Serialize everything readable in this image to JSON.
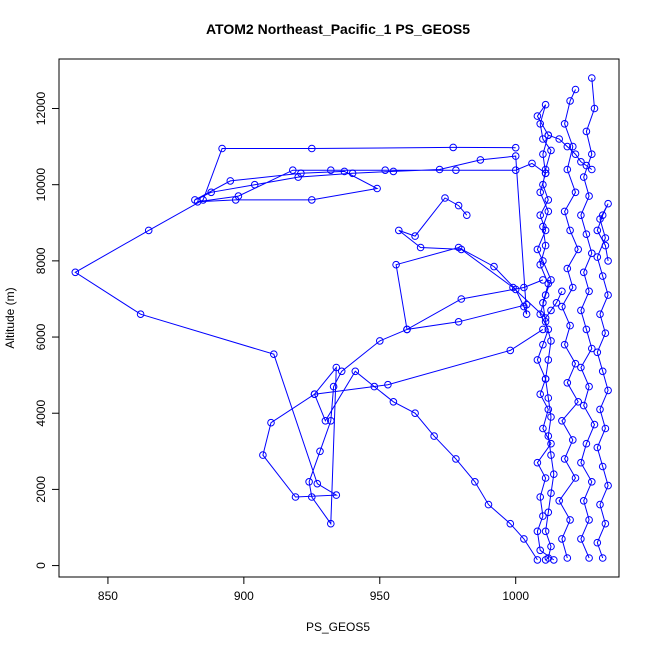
{
  "chart_data": {
    "type": "line",
    "title": "ATOM2 Northeast_Pacific_1 PS_GEOS5",
    "xlabel": "PS_GEOS5",
    "ylabel": "Altitude (m)",
    "xlim": [
      832,
      1038
    ],
    "ylim": [
      -300,
      13300
    ],
    "xticks": [
      850,
      900,
      950,
      1000
    ],
    "yticks": [
      0,
      2000,
      4000,
      6000,
      8000,
      10000,
      12000
    ],
    "grid": false,
    "legend": "none",
    "color": "#0000ff",
    "series": [
      {
        "x": [
          1014,
          1009,
          1008,
          1010,
          1009,
          1011,
          1008,
          1013,
          1010,
          1012,
          1009,
          1011,
          1008,
          1010,
          1012,
          1009,
          1011,
          1013,
          1010,
          1008,
          1011,
          1009,
          1012,
          1010,
          1011,
          1013,
          1010,
          1009,
          1011,
          1008,
          1012,
          1010,
          1011,
          1009,
          1012,
          1010,
          1011,
          1009,
          1012,
          1010,
          1011,
          1013,
          1012,
          1011,
          1012,
          1013,
          1012,
          1013,
          1014,
          1013,
          1012,
          1011,
          1013,
          1012,
          1011
        ],
        "y": [
          150,
          400,
          900,
          1300,
          1800,
          2300,
          2700,
          3200,
          3600,
          4100,
          4500,
          4900,
          5400,
          5800,
          6200,
          6600,
          7100,
          7500,
          8000,
          8300,
          8800,
          9200,
          9600,
          10000,
          10400,
          10900,
          11200,
          11600,
          12100,
          11800,
          11300,
          10800,
          10300,
          9800,
          9300,
          8900,
          8400,
          7900,
          7400,
          6900,
          6400,
          5900,
          5400,
          4900,
          4400,
          3900,
          3400,
          2900,
          2400,
          1900,
          1400,
          900,
          500,
          200,
          150
        ]
      },
      {
        "x": [
          1012,
          1016,
          1019,
          1022,
          1024,
          1026,
          1028
        ],
        "y": [
          11300,
          11200,
          11000,
          10800,
          10600,
          10500,
          10400
        ]
      },
      {
        "x": [
          1019,
          1017,
          1020,
          1016,
          1022,
          1018,
          1021,
          1017,
          1023,
          1019,
          1022,
          1018,
          1020,
          1017,
          1021,
          1019,
          1023,
          1020,
          1018,
          1022,
          1019,
          1021,
          1018,
          1020,
          1022
        ],
        "y": [
          200,
          700,
          1200,
          1700,
          2300,
          2800,
          3300,
          3800,
          4300,
          4800,
          5300,
          5800,
          6300,
          6800,
          7300,
          7800,
          8300,
          8800,
          9300,
          9800,
          10400,
          11000,
          11600,
          12200,
          12500
        ]
      },
      {
        "x": [
          1027,
          1024,
          1027,
          1025,
          1028,
          1024,
          1026,
          1029,
          1025,
          1027,
          1024,
          1028,
          1026,
          1024,
          1027,
          1025,
          1028,
          1026,
          1024,
          1027,
          1025,
          1028,
          1026,
          1029,
          1028
        ],
        "y": [
          200,
          700,
          1200,
          1700,
          2200,
          2700,
          3200,
          3700,
          4200,
          4700,
          5200,
          5700,
          6200,
          6700,
          7200,
          7700,
          8200,
          8700,
          9200,
          9700,
          10200,
          10800,
          11400,
          12000,
          12800
        ]
      },
      {
        "x": [
          1032,
          1030,
          1033,
          1031,
          1034,
          1032,
          1030,
          1033,
          1031,
          1034,
          1032,
          1030,
          1033,
          1031,
          1034,
          1032,
          1030,
          1033,
          1031,
          1034,
          1032,
          1030,
          1033,
          1034
        ],
        "y": [
          200,
          600,
          1100,
          1600,
          2100,
          2600,
          3100,
          3600,
          4100,
          4600,
          5100,
          5600,
          6100,
          6600,
          7100,
          7600,
          8100,
          8600,
          9100,
          9500,
          9200,
          8800,
          8400,
          8000
        ]
      },
      {
        "x": [
          1008,
          1003,
          998,
          990,
          985,
          978,
          970,
          963,
          955,
          948,
          941,
          930,
          926,
          934,
          932,
          925,
          924,
          928,
          932,
          933,
          936,
          950,
          960,
          980,
          1003,
          1010
        ],
        "y": [
          150,
          700,
          1100,
          1600,
          2200,
          2800,
          3400,
          4000,
          4300,
          4700,
          5100,
          3800,
          4500,
          5200,
          1100,
          1800,
          2200,
          3000,
          3800,
          4700,
          5100,
          5900,
          6200,
          7000,
          7300,
          7500
        ]
      },
      {
        "x": [
          1010,
          998,
          953,
          926,
          910,
          907,
          919,
          934,
          927,
          911,
          862,
          838,
          865,
          885,
          892,
          925,
          977,
          1000
        ],
        "y": [
          6200,
          5650,
          4750,
          4500,
          3750,
          2900,
          1800,
          1850,
          2150,
          5550,
          6600,
          7700,
          8800,
          9600,
          10950,
          10950,
          10980,
          10970
        ]
      },
      {
        "x": [
          1004,
          979,
          960,
          956,
          979,
          992,
          1000,
          1003,
          1004,
          1000,
          987,
          972,
          955,
          940,
          920,
          904,
          888,
          882,
          895,
          921,
          937,
          949,
          925,
          897,
          883,
          898,
          918,
          932,
          952,
          978,
          1000,
          1006,
          1011
        ],
        "y": [
          6850,
          6400,
          6200,
          7900,
          8350,
          7850,
          7250,
          6800,
          6600,
          10750,
          10650,
          10400,
          10350,
          10300,
          10200,
          10000,
          9800,
          9600,
          10100,
          10300,
          10350,
          9900,
          9600,
          9600,
          9550,
          9700,
          10380,
          10380,
          10380,
          10380,
          10380,
          10560,
          10300
        ]
      },
      {
        "x": [
          982,
          979,
          974,
          963,
          957,
          965,
          980,
          999,
          1011,
          1013,
          1015,
          1017
        ],
        "y": [
          9200,
          9450,
          9650,
          8650,
          8800,
          8350,
          8300,
          7300,
          6500,
          6700,
          6900,
          7200
        ]
      }
    ]
  }
}
